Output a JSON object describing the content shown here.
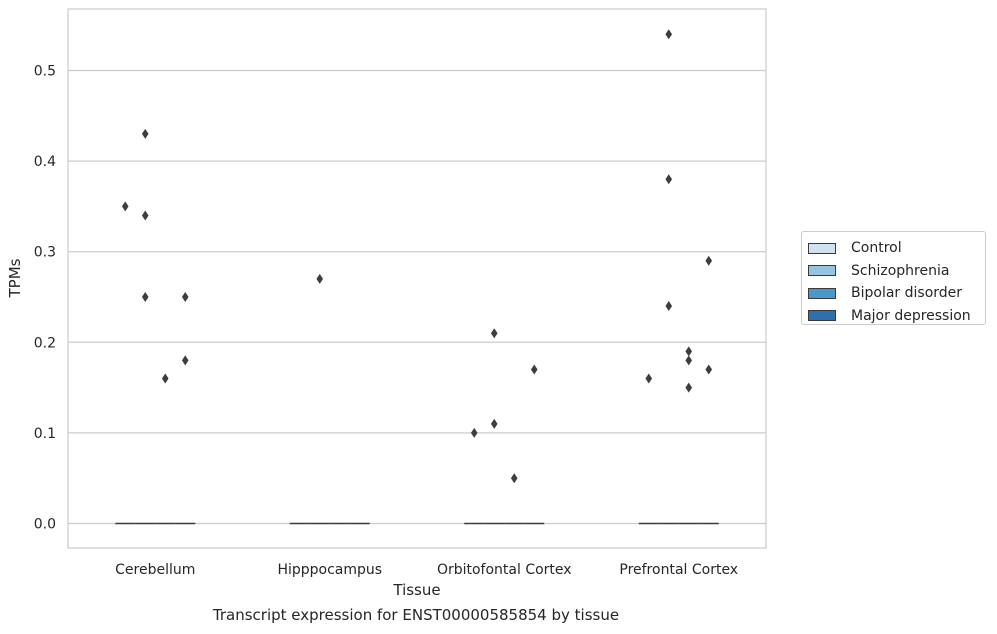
{
  "chart_data": {
    "type": "box",
    "caption": "Transcript expression for ENST00000585854 by tissue",
    "xlabel": "Tissue",
    "ylabel": "TPMs",
    "ylim": [
      -0.027,
      0.57
    ],
    "yticks": [
      "0.0",
      "0.1",
      "0.2",
      "0.3",
      "0.4",
      "0.5"
    ],
    "ytick_values": [
      0.0,
      0.1,
      0.2,
      0.3,
      0.4,
      0.5
    ],
    "grid": "horizontal",
    "legend_position": "right",
    "categories": [
      "Cerebellum",
      "Hipppocampus",
      "Orbitofontal Cortex",
      "Prefrontal Cortex"
    ],
    "series": [
      {
        "name": "Control",
        "color": "#d0e1f2",
        "median": [
          0,
          0,
          0,
          0
        ],
        "outliers": [
          [
            0.35
          ],
          [],
          [
            0.1
          ],
          [
            0.16
          ]
        ]
      },
      {
        "name": "Schizophrenia",
        "color": "#94c4df",
        "median": [
          0,
          0,
          0,
          0
        ],
        "outliers": [
          [
            0.43,
            0.34,
            0.25
          ],
          [
            0.27
          ],
          [
            0.21,
            0.11
          ],
          [
            0.54,
            0.38,
            0.24
          ]
        ]
      },
      {
        "name": "Bipolar disorder",
        "color": "#4a98c9",
        "median": [
          0,
          0,
          0,
          0
        ],
        "outliers": [
          [
            0.16
          ],
          [],
          [
            0.05
          ],
          [
            0.19,
            0.18,
            0.15
          ]
        ]
      },
      {
        "name": "Major depression",
        "color": "#2e6fb0",
        "median": [
          0,
          0,
          0,
          0
        ],
        "outliers": [
          [
            0.25,
            0.18
          ],
          [],
          [
            0.17
          ],
          [
            0.29,
            0.17
          ]
        ]
      }
    ]
  }
}
